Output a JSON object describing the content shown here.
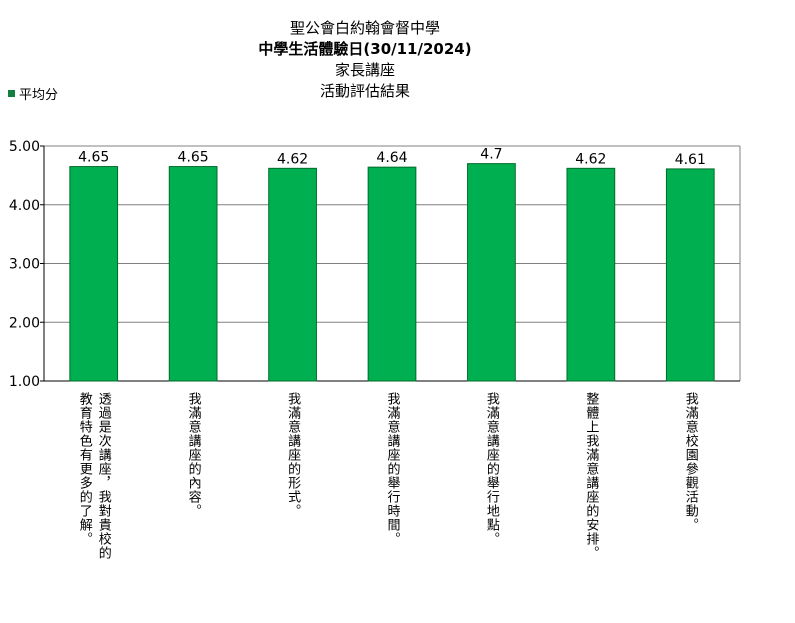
{
  "title": {
    "lines": [
      "聖公會白約翰會督中學",
      "中學生活體驗日(30/11/2024)",
      "家長講座",
      "活動評估結果"
    ]
  },
  "legend": {
    "label": "平均分"
  },
  "colors": {
    "bar": "#00b050",
    "bar_edge": "#006b2a",
    "legend": "#148040",
    "grid": "#808080"
  },
  "chart_data": {
    "type": "bar",
    "categories": [
      "透過是次講座，我對貴校的教育特色有更多的了解。",
      "我滿意講座的內容。",
      "我滿意講座的形式。",
      "我滿意講座的舉行時間。",
      "我滿意講座的舉行地點。",
      "整體上我滿意講座的安排。",
      "我滿意校園參觀活動。"
    ],
    "category_columns": [
      [
        "透過是次講座，我對貴校的",
        "教育特色有更多的了解。"
      ],
      [
        "我滿意講座的內容。"
      ],
      [
        "我滿意講座的形式。"
      ],
      [
        "我滿意講座的舉行時間。"
      ],
      [
        "我滿意講座的舉行地點。"
      ],
      [
        "整體上我滿意講座的安排。"
      ],
      [
        "我滿意校園參觀活動。"
      ]
    ],
    "series": [
      {
        "name": "平均分",
        "values": [
          4.65,
          4.65,
          4.62,
          4.64,
          4.7,
          4.62,
          4.61
        ]
      }
    ],
    "data_labels": [
      "4.65",
      "4.65",
      "4.62",
      "4.64",
      "4.7",
      "4.62",
      "4.61"
    ],
    "y_ticks": [
      "1.00",
      "2.00",
      "3.00",
      "4.00",
      "5.00"
    ],
    "ylim": [
      1,
      5
    ],
    "grid": true,
    "legend_position": "top-left"
  }
}
